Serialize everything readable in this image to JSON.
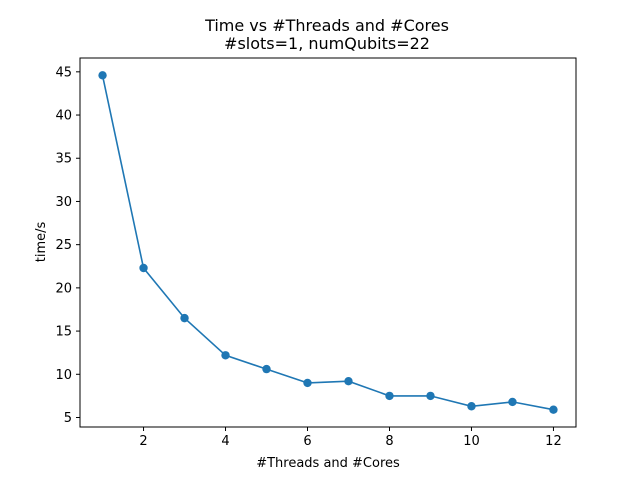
{
  "chart_data": {
    "type": "line",
    "title": "Time vs #Threads and #Cores",
    "subtitle": "#slots=1, numQubits=22",
    "xlabel": "#Threads and #Cores",
    "ylabel": "time/s",
    "x": [
      1,
      2,
      3,
      4,
      5,
      6,
      7,
      8,
      9,
      10,
      11,
      12
    ],
    "series": [
      {
        "name": "time",
        "values": [
          44.6,
          22.3,
          16.5,
          12.2,
          10.6,
          9.0,
          9.2,
          7.5,
          7.5,
          6.3,
          6.8,
          5.9
        ],
        "color": "#1f77b4"
      }
    ],
    "xlim": [
      0.45,
      12.55
    ],
    "ylim": [
      3.9,
      46.6
    ],
    "xticks": [
      2,
      4,
      6,
      8,
      10,
      12
    ],
    "yticks": [
      5,
      10,
      15,
      20,
      25,
      30,
      35,
      40,
      45
    ],
    "grid": false
  }
}
